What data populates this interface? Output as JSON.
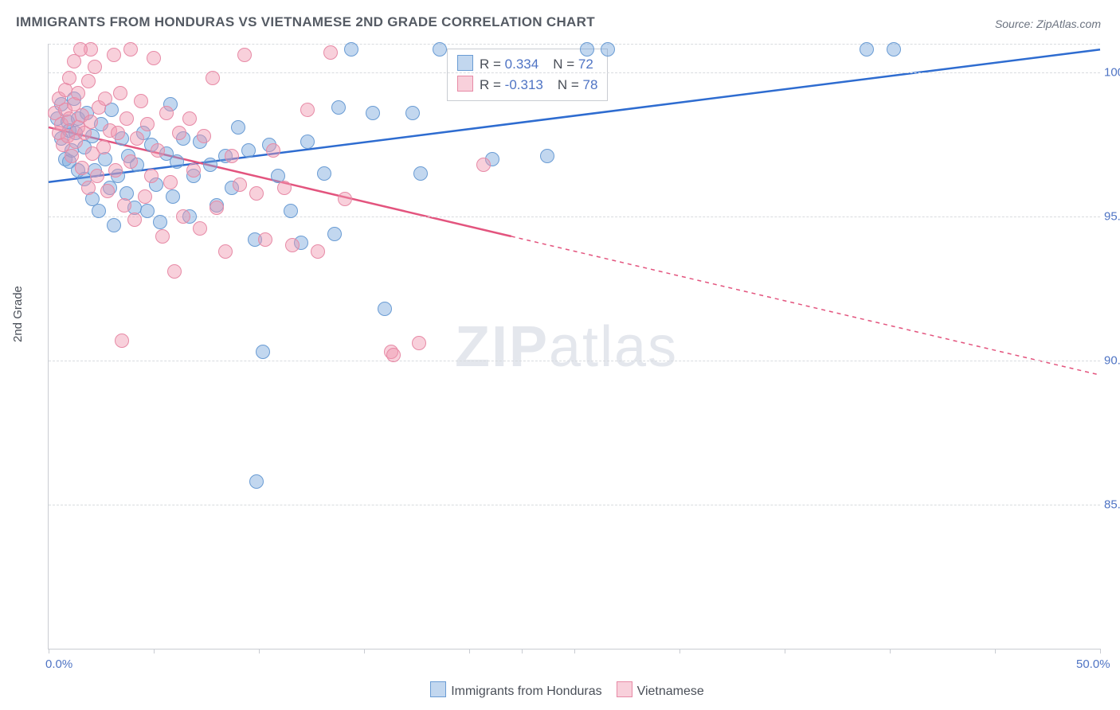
{
  "title": "IMMIGRANTS FROM HONDURAS VS VIETNAMESE 2ND GRADE CORRELATION CHART",
  "source_label": "Source: ZipAtlas.com",
  "ylabel": "2nd Grade",
  "watermark_a": "ZIP",
  "watermark_b": "atlas",
  "chart": {
    "type": "scatter",
    "xlim": [
      0,
      50
    ],
    "ylim": [
      80,
      101
    ],
    "x_ticks": [
      0,
      5,
      10,
      15,
      20,
      22.5,
      25,
      30,
      35,
      40,
      45,
      50
    ],
    "x_tick_labels": {
      "0": "0.0%",
      "50": "50.0%"
    },
    "y_gridlines": [
      85,
      90,
      95,
      100,
      101
    ],
    "y_tick_labels": {
      "85": "85.0%",
      "90": "90.0%",
      "95": "95.0%",
      "100": "100.0%"
    },
    "background_color": "#ffffff",
    "grid_color": "#d8dbdf",
    "axis_color": "#c9ccd2",
    "series": [
      {
        "name": "Immigrants from Honduras",
        "key": "honduras",
        "fill": "rgba(119,167,219,0.45)",
        "stroke": "#6a9cd4",
        "line_color": "#2e6cd0",
        "R_label": "R = ",
        "R": "0.334",
        "N_label": "N = ",
        "N": "72",
        "trend": {
          "x1": 0,
          "y1": 96.2,
          "x2": 50,
          "y2": 100.8,
          "dash_from_x": 50
        },
        "points": [
          [
            0.4,
            98.4
          ],
          [
            0.6,
            97.7
          ],
          [
            0.6,
            98.9
          ],
          [
            0.8,
            97.0
          ],
          [
            0.9,
            98.3
          ],
          [
            1.0,
            96.9
          ],
          [
            1.0,
            98.0
          ],
          [
            1.1,
            97.3
          ],
          [
            1.2,
            99.1
          ],
          [
            1.4,
            96.6
          ],
          [
            1.4,
            98.4
          ],
          [
            1.7,
            97.4
          ],
          [
            1.7,
            96.3
          ],
          [
            1.8,
            98.6
          ],
          [
            2.1,
            95.6
          ],
          [
            2.1,
            97.8
          ],
          [
            2.2,
            96.6
          ],
          [
            2.4,
            95.2
          ],
          [
            2.5,
            98.2
          ],
          [
            2.7,
            97.0
          ],
          [
            2.9,
            96.0
          ],
          [
            3.0,
            98.7
          ],
          [
            3.1,
            94.7
          ],
          [
            3.3,
            96.4
          ],
          [
            3.5,
            97.7
          ],
          [
            3.7,
            95.8
          ],
          [
            3.8,
            97.1
          ],
          [
            4.1,
            95.3
          ],
          [
            4.2,
            96.8
          ],
          [
            4.5,
            97.9
          ],
          [
            4.7,
            95.2
          ],
          [
            4.9,
            97.5
          ],
          [
            5.1,
            96.1
          ],
          [
            5.3,
            94.8
          ],
          [
            5.6,
            97.2
          ],
          [
            5.9,
            95.7
          ],
          [
            6.1,
            96.9
          ],
          [
            6.4,
            97.7
          ],
          [
            6.7,
            95.0
          ],
          [
            6.9,
            96.4
          ],
          [
            7.2,
            97.6
          ],
          [
            7.7,
            96.8
          ],
          [
            8.0,
            95.4
          ],
          [
            8.4,
            97.1
          ],
          [
            8.7,
            96.0
          ],
          [
            9.0,
            98.1
          ],
          [
            9.5,
            97.3
          ],
          [
            9.8,
            94.2
          ],
          [
            10.2,
            90.3
          ],
          [
            10.5,
            97.5
          ],
          [
            10.9,
            96.4
          ],
          [
            11.5,
            95.2
          ],
          [
            12.0,
            94.1
          ],
          [
            12.3,
            97.6
          ],
          [
            13.1,
            96.5
          ],
          [
            13.6,
            94.4
          ],
          [
            13.8,
            98.8
          ],
          [
            14.4,
            100.8
          ],
          [
            15.4,
            98.6
          ],
          [
            16.0,
            91.8
          ],
          [
            17.3,
            98.6
          ],
          [
            17.7,
            96.5
          ],
          [
            18.6,
            100.8
          ],
          [
            21.1,
            97.0
          ],
          [
            23.7,
            97.1
          ],
          [
            25.6,
            100.8
          ],
          [
            26.6,
            100.8
          ],
          [
            38.9,
            100.8
          ],
          [
            40.2,
            100.8
          ],
          [
            9.9,
            85.8
          ],
          [
            5.8,
            98.9
          ],
          [
            1.3,
            97.9
          ]
        ]
      },
      {
        "name": "Vietnamese",
        "key": "vietnamese",
        "fill": "rgba(240,150,175,0.45)",
        "stroke": "#e78aa6",
        "line_color": "#e3547e",
        "R_label": "R = ",
        "R": "-0.313",
        "N_label": "N = ",
        "N": "78",
        "trend": {
          "x1": 0,
          "y1": 98.1,
          "x2": 50,
          "y2": 89.5,
          "dash_from_x": 22
        },
        "points": [
          [
            0.3,
            98.6
          ],
          [
            0.5,
            97.9
          ],
          [
            0.5,
            99.1
          ],
          [
            0.6,
            98.2
          ],
          [
            0.7,
            97.5
          ],
          [
            0.8,
            98.7
          ],
          [
            0.8,
            99.4
          ],
          [
            0.9,
            97.8
          ],
          [
            1.0,
            98.4
          ],
          [
            1.0,
            99.8
          ],
          [
            1.1,
            97.1
          ],
          [
            1.2,
            98.9
          ],
          [
            1.2,
            100.4
          ],
          [
            1.3,
            97.6
          ],
          [
            1.4,
            98.1
          ],
          [
            1.4,
            99.3
          ],
          [
            1.6,
            96.7
          ],
          [
            1.6,
            98.5
          ],
          [
            1.7,
            97.9
          ],
          [
            1.9,
            99.7
          ],
          [
            1.9,
            96.0
          ],
          [
            2.0,
            98.3
          ],
          [
            2.1,
            97.2
          ],
          [
            2.2,
            100.2
          ],
          [
            2.3,
            96.4
          ],
          [
            2.4,
            98.8
          ],
          [
            2.6,
            97.4
          ],
          [
            2.7,
            99.1
          ],
          [
            2.8,
            95.9
          ],
          [
            2.9,
            98.0
          ],
          [
            3.1,
            100.6
          ],
          [
            3.2,
            96.6
          ],
          [
            3.3,
            97.9
          ],
          [
            3.4,
            99.3
          ],
          [
            3.6,
            95.4
          ],
          [
            3.7,
            98.4
          ],
          [
            3.9,
            96.9
          ],
          [
            3.9,
            100.8
          ],
          [
            4.1,
            94.9
          ],
          [
            4.2,
            97.7
          ],
          [
            4.4,
            99.0
          ],
          [
            4.6,
            95.7
          ],
          [
            4.7,
            98.2
          ],
          [
            4.9,
            96.4
          ],
          [
            5.0,
            100.5
          ],
          [
            5.2,
            97.3
          ],
          [
            5.4,
            94.3
          ],
          [
            5.6,
            98.6
          ],
          [
            5.8,
            96.2
          ],
          [
            6.0,
            93.1
          ],
          [
            6.2,
            97.9
          ],
          [
            6.4,
            95.0
          ],
          [
            6.7,
            98.4
          ],
          [
            6.9,
            96.6
          ],
          [
            7.2,
            94.6
          ],
          [
            7.4,
            97.8
          ],
          [
            7.8,
            99.8
          ],
          [
            8.0,
            95.3
          ],
          [
            8.4,
            93.8
          ],
          [
            8.7,
            97.1
          ],
          [
            9.1,
            96.1
          ],
          [
            9.3,
            100.6
          ],
          [
            9.9,
            95.8
          ],
          [
            10.3,
            94.2
          ],
          [
            10.7,
            97.3
          ],
          [
            11.2,
            96.0
          ],
          [
            11.6,
            94.0
          ],
          [
            12.3,
            98.7
          ],
          [
            12.8,
            93.8
          ],
          [
            13.4,
            100.7
          ],
          [
            14.1,
            95.6
          ],
          [
            16.3,
            90.3
          ],
          [
            16.4,
            90.2
          ],
          [
            17.6,
            90.6
          ],
          [
            20.7,
            96.8
          ],
          [
            3.5,
            90.7
          ],
          [
            2.0,
            100.8
          ],
          [
            1.5,
            100.8
          ]
        ]
      }
    ],
    "legend_bottom": [
      {
        "sq_fill": "rgba(119,167,219,0.45)",
        "sq_stroke": "#6a9cd4",
        "label": "Immigrants from Honduras"
      },
      {
        "sq_fill": "rgba(240,150,175,0.45)",
        "sq_stroke": "#e78aa6",
        "label": "Vietnamese"
      }
    ]
  }
}
